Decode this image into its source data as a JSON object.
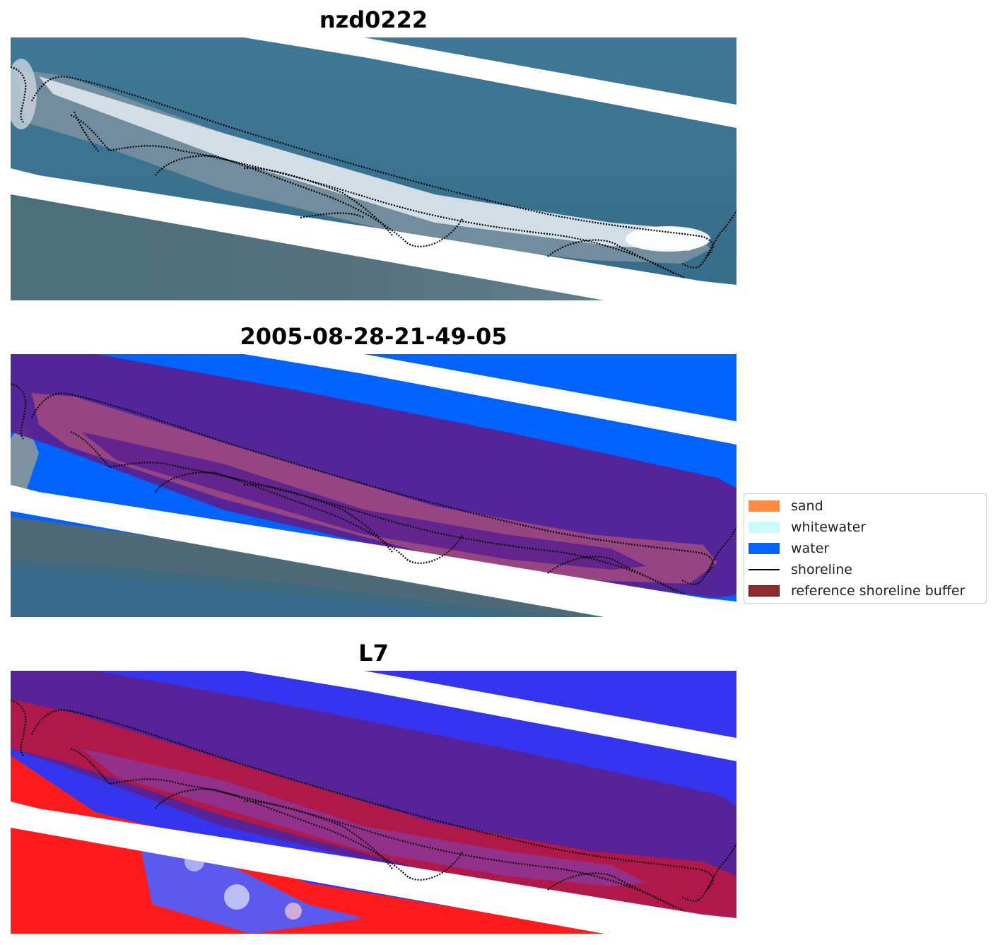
{
  "panels": [
    {
      "title": "nzd0222",
      "kind": "rgb"
    },
    {
      "title": "2005-08-28-21-49-05",
      "kind": "classified"
    },
    {
      "title": "L7",
      "kind": "index"
    }
  ],
  "legend": {
    "items": [
      {
        "label": "sand",
        "type": "patch",
        "color": "#ff8c42"
      },
      {
        "label": "whitewater",
        "type": "patch",
        "color": "#c9fdfb"
      },
      {
        "label": "water",
        "type": "patch",
        "color": "#0062ff"
      },
      {
        "label": "shoreline",
        "type": "line",
        "color": "#000000"
      },
      {
        "label": "reference shoreline buffer",
        "type": "patch",
        "color": "#8f2a2e"
      }
    ]
  },
  "colors": {
    "sea_rgb": "#3b7390",
    "land_rgb": "#4e6a78",
    "nodata": "#ffffff",
    "water_class": "#0062ff",
    "buffer_overlay": "#5a1f8f",
    "index_water": "#3535f0",
    "index_land": "#ff1b1b"
  }
}
